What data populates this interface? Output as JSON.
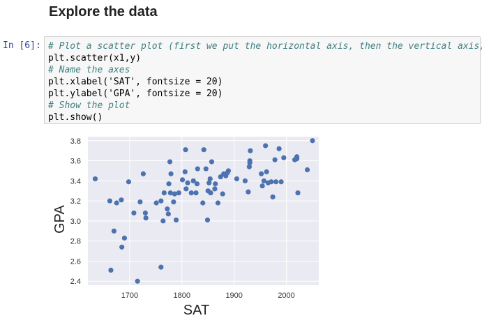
{
  "notebook": {
    "heading": "Explore the data",
    "cell_prompt": "In [6]:",
    "code_lines": [
      {
        "text": "# Plot a scatter plot (first we put the horizontal axis, then the vertical axis)",
        "kind": "comment"
      },
      {
        "text": "plt.scatter(x1,y)",
        "kind": "code"
      },
      {
        "text": "# Name the axes",
        "kind": "comment"
      },
      {
        "text": "plt.xlabel('SAT', fontsize = 20)",
        "kind": "code"
      },
      {
        "text": "plt.ylabel('GPA', fontsize = 20)",
        "kind": "code"
      },
      {
        "text": "# Show the plot",
        "kind": "comment"
      },
      {
        "text": "plt.show()",
        "kind": "code"
      }
    ]
  },
  "chart_data": {
    "type": "scatter",
    "title": "",
    "xlabel": "SAT",
    "ylabel": "GPA",
    "xlim": [
      1620,
      2062
    ],
    "ylim": [
      2.36,
      3.84
    ],
    "xticks": [
      1700,
      1800,
      1900,
      2000
    ],
    "yticks": [
      2.4,
      2.6,
      2.8,
      3.0,
      3.2,
      3.4,
      3.6,
      3.8
    ],
    "xtick_labels": [
      "1700",
      "1800",
      "1900",
      "2000"
    ],
    "ytick_labels": [
      "2.4",
      "2.6",
      "2.8",
      "3.0",
      "3.2",
      "3.4",
      "3.6",
      "3.8"
    ],
    "grid": true,
    "background_color": "#eaeaf2",
    "point_color": "#4c72b0",
    "points": [
      [
        1634,
        3.42
      ],
      [
        1662,
        3.2
      ],
      [
        1664,
        2.51
      ],
      [
        1670,
        2.9
      ],
      [
        1675,
        3.18
      ],
      [
        1684,
        3.21
      ],
      [
        1685,
        2.74
      ],
      [
        1690,
        2.83
      ],
      [
        1698,
        3.39
      ],
      [
        1708,
        3.08
      ],
      [
        1715,
        2.4
      ],
      [
        1720,
        3.19
      ],
      [
        1726,
        3.47
      ],
      [
        1730,
        3.08
      ],
      [
        1731,
        3.03
      ],
      [
        1751,
        3.18
      ],
      [
        1760,
        2.54
      ],
      [
        1760,
        3.2
      ],
      [
        1764,
        3.0
      ],
      [
        1766,
        3.28
      ],
      [
        1772,
        3.12
      ],
      [
        1774,
        3.07
      ],
      [
        1775,
        3.37
      ],
      [
        1777,
        3.59
      ],
      [
        1778,
        3.28
      ],
      [
        1779,
        3.47
      ],
      [
        1784,
        3.19
      ],
      [
        1786,
        3.27
      ],
      [
        1789,
        3.01
      ],
      [
        1794,
        3.28
      ],
      [
        1801,
        3.41
      ],
      [
        1806,
        3.49
      ],
      [
        1807,
        3.71
      ],
      [
        1808,
        3.32
      ],
      [
        1811,
        3.38
      ],
      [
        1818,
        3.28
      ],
      [
        1822,
        3.4
      ],
      [
        1827,
        3.28
      ],
      [
        1829,
        3.37
      ],
      [
        1830,
        3.52
      ],
      [
        1840,
        3.18
      ],
      [
        1842,
        3.71
      ],
      [
        1846,
        3.52
      ],
      [
        1849,
        3.01
      ],
      [
        1850,
        3.3
      ],
      [
        1852,
        3.38
      ],
      [
        1854,
        3.42
      ],
      [
        1855,
        3.28
      ],
      [
        1857,
        3.59
      ],
      [
        1863,
        3.32
      ],
      [
        1864,
        3.37
      ],
      [
        1869,
        3.18
      ],
      [
        1874,
        3.44
      ],
      [
        1878,
        3.27
      ],
      [
        1880,
        3.47
      ],
      [
        1884,
        3.45
      ],
      [
        1887,
        3.48
      ],
      [
        1889,
        3.5
      ],
      [
        1905,
        3.42
      ],
      [
        1921,
        3.4
      ],
      [
        1927,
        3.29
      ],
      [
        1929,
        3.54
      ],
      [
        1930,
        3.58
      ],
      [
        1930,
        3.6
      ],
      [
        1931,
        3.7
      ],
      [
        1952,
        3.47
      ],
      [
        1954,
        3.35
      ],
      [
        1957,
        3.4
      ],
      [
        1960,
        3.75
      ],
      [
        1962,
        3.49
      ],
      [
        1965,
        3.38
      ],
      [
        1971,
        3.39
      ],
      [
        1974,
        3.24
      ],
      [
        1978,
        3.61
      ],
      [
        1980,
        3.39
      ],
      [
        1986,
        3.72
      ],
      [
        1990,
        3.39
      ],
      [
        1995,
        3.63
      ],
      [
        2016,
        3.61
      ],
      [
        2020,
        3.64
      ],
      [
        2020,
        3.62
      ],
      [
        2022,
        3.28
      ],
      [
        2040,
        3.51
      ],
      [
        2050,
        3.8
      ]
    ]
  }
}
